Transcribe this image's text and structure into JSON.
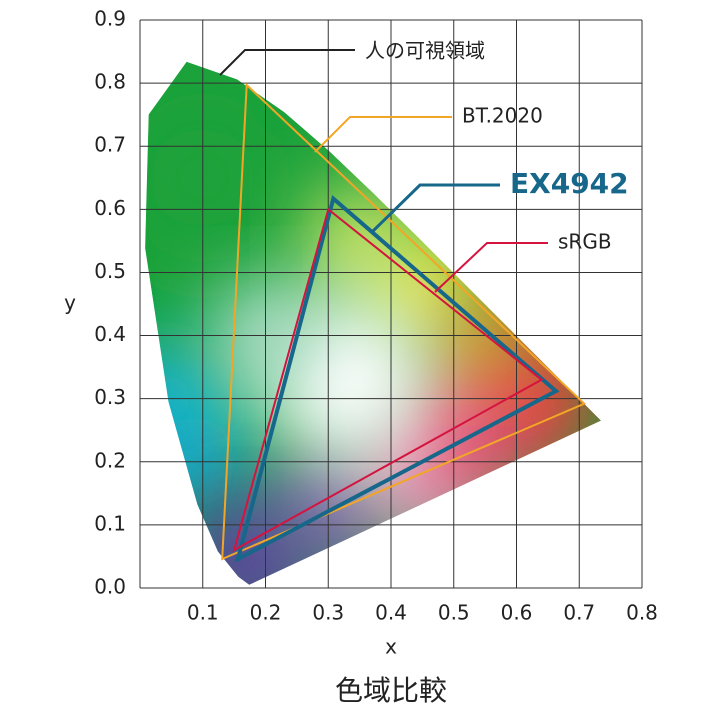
{
  "chart_data": {
    "type": "chromaticity",
    "title": "色域比較",
    "xlabel": "x",
    "ylabel": "y",
    "xlim": [
      0,
      0.8
    ],
    "ylim": [
      0,
      0.9
    ],
    "xticks": [
      0.1,
      0.2,
      0.3,
      0.4,
      0.5,
      0.6,
      0.7,
      0.8
    ],
    "yticks": [
      {
        "value": 0,
        "label": "0.0"
      },
      0.1,
      0.2,
      0.3,
      0.4,
      0.5,
      0.6,
      0.7,
      0.8,
      0.9
    ],
    "grid": true,
    "series": [
      {
        "name": "人の可視領域",
        "color": "#1aa23a",
        "x": [
          0.1741,
          0.1566,
          0.1241,
          0.0913,
          0.0454,
          0.0082,
          0.0139,
          0.0743,
          0.1547,
          0.2296,
          0.3016,
          0.3731,
          0.4441,
          0.5125,
          0.5752,
          0.627,
          0.6915,
          0.7347
        ],
        "y": [
          0.005,
          0.0177,
          0.0578,
          0.1327,
          0.295,
          0.5384,
          0.7502,
          0.8338,
          0.8059,
          0.7543,
          0.6923,
          0.6245,
          0.5547,
          0.4866,
          0.4242,
          0.3725,
          0.3083,
          0.2653
        ]
      },
      {
        "name": "BT.2020",
        "color": "#f2a627",
        "x": [
          0.708,
          0.17,
          0.131
        ],
        "y": [
          0.292,
          0.797,
          0.046
        ]
      },
      {
        "name": "EX4942",
        "color": "#16678a",
        "x": [
          0.663,
          0.308,
          0.156
        ],
        "y": [
          0.312,
          0.617,
          0.046
        ]
      },
      {
        "name": "sRGB",
        "color": "#d4143f",
        "x": [
          0.64,
          0.3,
          0.15
        ],
        "y": [
          0.33,
          0.6,
          0.06
        ]
      }
    ]
  }
}
